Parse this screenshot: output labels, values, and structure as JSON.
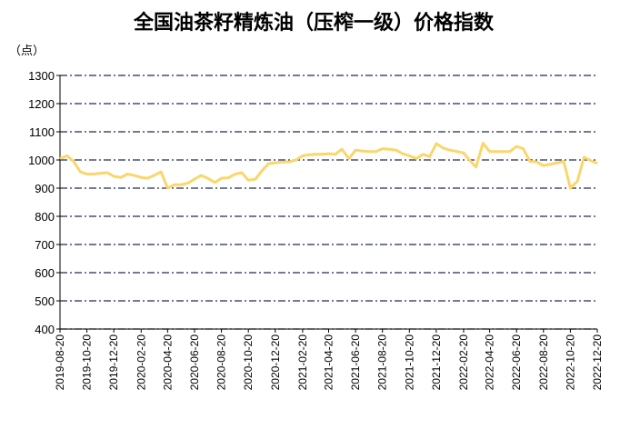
{
  "chart_data": {
    "type": "line",
    "title": "全国油茶籽精炼油（压榨一级）价格指数",
    "y_label": "（点）",
    "x": [
      "2019-08-20",
      "2019-09-05",
      "2019-09-20",
      "2019-10-05",
      "2019-10-20",
      "2019-11-05",
      "2019-11-20",
      "2019-12-05",
      "2019-12-20",
      "2020-01-05",
      "2020-01-20",
      "2020-02-05",
      "2020-02-20",
      "2020-03-05",
      "2020-03-20",
      "2020-04-05",
      "2020-04-20",
      "2020-05-05",
      "2020-05-20",
      "2020-06-05",
      "2020-06-20",
      "2020-07-05",
      "2020-07-20",
      "2020-08-05",
      "2020-08-20",
      "2020-09-05",
      "2020-09-20",
      "2020-10-05",
      "2020-10-20",
      "2020-11-05",
      "2020-11-20",
      "2020-12-05",
      "2020-12-20",
      "2021-01-05",
      "2021-01-20",
      "2021-02-05",
      "2021-02-20",
      "2021-03-05",
      "2021-03-20",
      "2021-04-05",
      "2021-04-20",
      "2021-05-05",
      "2021-05-20",
      "2021-06-05",
      "2021-06-20",
      "2021-07-05",
      "2021-07-20",
      "2021-08-05",
      "2021-08-20",
      "2021-09-05",
      "2021-09-20",
      "2021-10-05",
      "2021-10-20",
      "2021-11-05",
      "2021-11-20",
      "2021-12-05",
      "2021-12-20",
      "2022-01-05",
      "2022-01-20",
      "2022-02-05",
      "2022-02-20",
      "2022-03-05",
      "2022-03-20",
      "2022-04-05",
      "2022-04-20",
      "2022-05-05",
      "2022-05-20",
      "2022-06-05",
      "2022-06-20",
      "2022-07-05",
      "2022-07-20",
      "2022-08-05",
      "2022-08-20",
      "2022-09-05",
      "2022-09-20",
      "2022-10-05",
      "2022-10-20",
      "2022-11-05",
      "2022-11-20",
      "2022-12-05",
      "2022-12-20"
    ],
    "series": [
      {
        "name": "价格指数",
        "color": "#fad66b",
        "values": [
          1005,
          1015,
          995,
          958,
          950,
          950,
          953,
          955,
          942,
          938,
          950,
          945,
          938,
          935,
          945,
          958,
          900,
          912,
          912,
          918,
          932,
          945,
          935,
          920,
          935,
          937,
          950,
          955,
          928,
          932,
          962,
          987,
          990,
          993,
          993,
          1000,
          1015,
          1018,
          1020,
          1020,
          1022,
          1020,
          1038,
          1005,
          1035,
          1032,
          1030,
          1030,
          1040,
          1038,
          1035,
          1022,
          1015,
          1005,
          1020,
          1012,
          1058,
          1042,
          1035,
          1030,
          1025,
          1000,
          975,
          1060,
          1030,
          1030,
          1030,
          1030,
          1048,
          1040,
          995,
          993,
          980,
          985,
          990,
          995,
          900,
          925,
          1010,
          998,
          988
        ]
      }
    ],
    "xlim": [
      "2019-08-20",
      "2022-12-20"
    ],
    "xticks": [
      "2019-08-20",
      "2019-10-20",
      "2019-12-20",
      "2020-02-20",
      "2020-04-20",
      "2020-06-20",
      "2020-08-20",
      "2020-10-20",
      "2020-12-20",
      "2021-02-20",
      "2021-04-20",
      "2021-06-20",
      "2021-08-20",
      "2021-10-20",
      "2021-12-20",
      "2022-02-20",
      "2022-04-20",
      "2022-06-20",
      "2022-08-20",
      "2022-10-20",
      "2022-12-20"
    ],
    "ylim": [
      400,
      1300
    ],
    "yticks": [
      400,
      500,
      600,
      700,
      800,
      900,
      1000,
      1100,
      1200,
      1300
    ],
    "grid": true,
    "grid_color": "#1f2a5a"
  }
}
